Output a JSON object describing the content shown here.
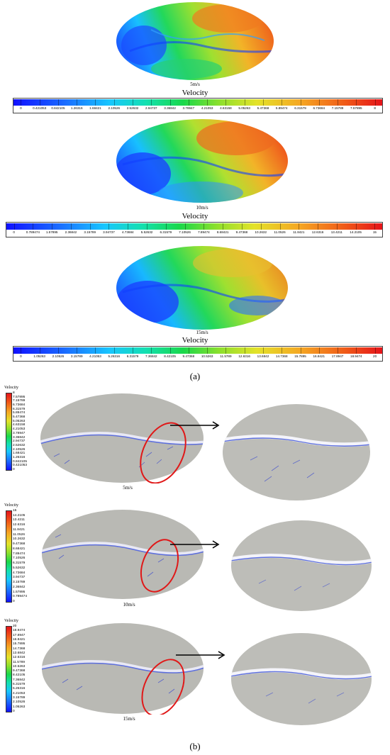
{
  "figure": {
    "part_a": {
      "label": "(a)",
      "legend_title": "Velocity",
      "panels": [
        {
          "speed": "5m/s",
          "ticks": [
            "0",
            "0.421053",
            "0.842105",
            "1.26316",
            "1.68421",
            "2.10526",
            "2.52632",
            "2.94737",
            "3.36842",
            "3.78947",
            "4.21053",
            "4.63158",
            "5.05263",
            "5.47368",
            "5.89474",
            "6.31579",
            "6.73684",
            "7.15789",
            "7.57895",
            "8"
          ]
        },
        {
          "speed": "10m/s",
          "ticks": [
            "0",
            "0.789474",
            "1.57895",
            "2.36842",
            "3.15789",
            "3.94737",
            "4.73684",
            "5.52632",
            "6.31579",
            "7.10526",
            "7.89474",
            "8.68421",
            "9.47368",
            "10.2632",
            "11.0526",
            "11.8421",
            "12.6316",
            "13.4211",
            "14.2105",
            "15"
          ]
        },
        {
          "speed": "15m/s",
          "ticks": [
            "0",
            "1.05263",
            "2.10526",
            "3.15789",
            "4.21053",
            "5.26316",
            "6.31579",
            "7.36842",
            "8.42105",
            "9.47368",
            "10.5263",
            "11.5789",
            "12.6316",
            "13.6842",
            "14.7368",
            "15.7895",
            "16.8421",
            "17.8947",
            "18.9474",
            "20"
          ]
        }
      ]
    },
    "part_b": {
      "label": "(b)",
      "legend_title": "Velocity",
      "panels": [
        {
          "speed": "5m/s",
          "ticks": [
            "8",
            "7.57895",
            "7.15789",
            "6.73684",
            "6.31579",
            "5.89474",
            "5.47368",
            "5.05263",
            "4.63158",
            "4.21053",
            "3.78947",
            "3.36842",
            "2.94737",
            "2.52632",
            "2.10526",
            "1.68421",
            "1.26316",
            "0.842105",
            "0.421053",
            "0"
          ]
        },
        {
          "speed": "10m/s",
          "ticks": [
            "15",
            "14.2105",
            "13.4211",
            "12.6316",
            "11.8421",
            "11.0526",
            "10.2632",
            "9.47368",
            "8.68421",
            "7.89474",
            "7.10526",
            "6.31579",
            "5.52632",
            "4.73684",
            "3.94737",
            "3.15789",
            "2.36842",
            "1.57895",
            "0.789474",
            "0"
          ]
        },
        {
          "speed": "15m/s",
          "ticks": [
            "20",
            "18.9474",
            "17.8947",
            "16.8421",
            "15.7895",
            "14.7368",
            "13.6842",
            "12.6316",
            "11.5789",
            "10.5263",
            "9.47368",
            "8.42105",
            "7.36842",
            "6.31579",
            "5.26316",
            "4.21053",
            "3.15789",
            "2.10526",
            "1.05263",
            "0"
          ]
        }
      ]
    }
  }
}
